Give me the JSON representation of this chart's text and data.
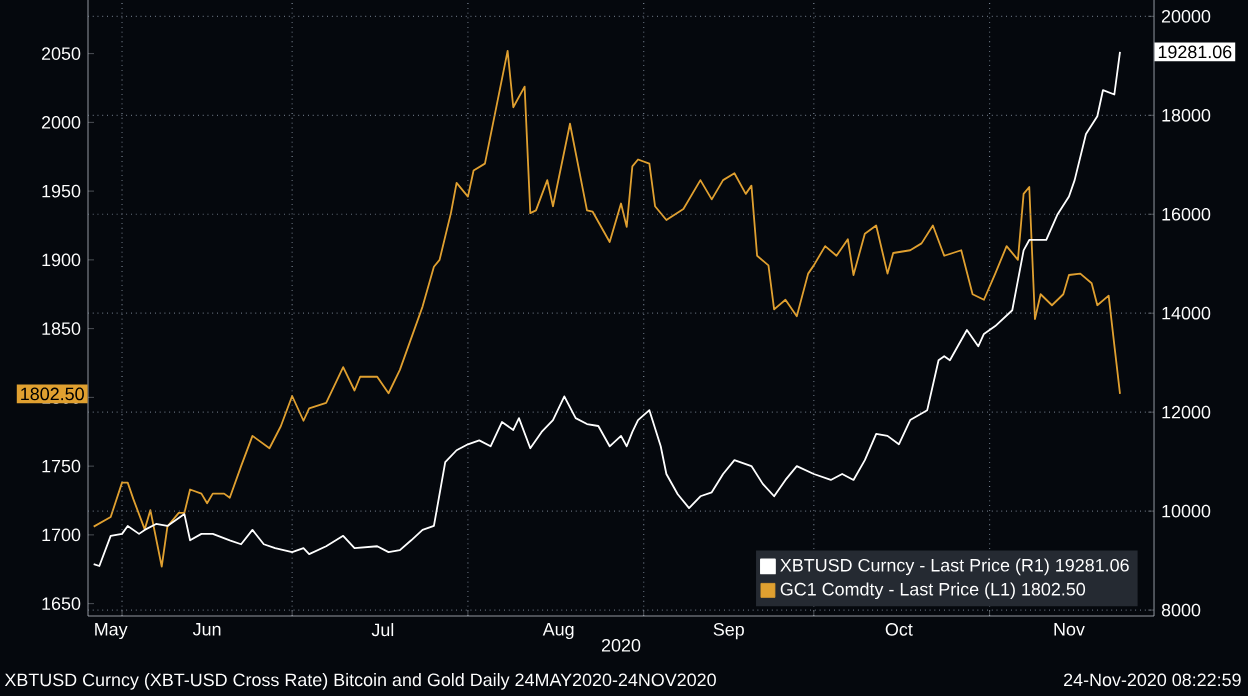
{
  "chart_data": {
    "type": "line",
    "title": "XBTUSD Curncy (XBT-USD Cross Rate) Bitcoin and Gold  Daily 24MAY2020-24NOV2020",
    "xlabel": "2020",
    "xlim": [
      "2020-05-26",
      "2020-11-30"
    ],
    "xticks": [
      {
        "value": "2020-05-30",
        "label": "May"
      },
      {
        "value": "2020-06-01",
        "label": null
      },
      {
        "value": "2020-06-16",
        "label": "Jun"
      },
      {
        "value": "2020-07-01",
        "label": null
      },
      {
        "value": "2020-07-17",
        "label": "Jul"
      },
      {
        "value": "2020-08-01",
        "label": null
      },
      {
        "value": "2020-08-17",
        "label": "Aug"
      },
      {
        "value": "2020-09-01",
        "label": null
      },
      {
        "value": "2020-09-16",
        "label": "Sep"
      },
      {
        "value": "2020-10-01",
        "label": null
      },
      {
        "value": "2020-10-16",
        "label": "Oct"
      },
      {
        "value": "2020-11-01",
        "label": null
      },
      {
        "value": "2020-11-15",
        "label": "Nov"
      }
    ],
    "ylim": [
      1641,
      2089
    ],
    "yticks": [
      1650,
      1700,
      1750,
      1800,
      1850,
      1900,
      1950,
      2000,
      2050
    ],
    "y2lim": [
      7880,
      20330
    ],
    "y2ticks": [
      8000,
      10000,
      12000,
      14000,
      16000,
      18000,
      20000
    ],
    "grid": true,
    "legend": "bottom right",
    "series": [
      {
        "name": "XBTUSD Curncy - Last Price (R1) 19281.06",
        "color": "#ffffff",
        "axis": "y2",
        "x": [
          "2020-05-27",
          "2020-05-28",
          "2020-05-30",
          "2020-06-01",
          "2020-06-02",
          "2020-06-04",
          "2020-06-05",
          "2020-06-07",
          "2020-06-09",
          "2020-06-12",
          "2020-06-13",
          "2020-06-15",
          "2020-06-17",
          "2020-06-20",
          "2020-06-22",
          "2020-06-24",
          "2020-06-26",
          "2020-06-28",
          "2020-07-01",
          "2020-07-03",
          "2020-07-04",
          "2020-07-07",
          "2020-07-10",
          "2020-07-12",
          "2020-07-16",
          "2020-07-18",
          "2020-07-20",
          "2020-07-22",
          "2020-07-24",
          "2020-07-26",
          "2020-07-28",
          "2020-07-30",
          "2020-08-01",
          "2020-08-03",
          "2020-08-05",
          "2020-08-07",
          "2020-08-09",
          "2020-08-10",
          "2020-08-12",
          "2020-08-14",
          "2020-08-16",
          "2020-08-18",
          "2020-08-20",
          "2020-08-22",
          "2020-08-24",
          "2020-08-26",
          "2020-08-28",
          "2020-08-29",
          "2020-08-30",
          "2020-08-31",
          "2020-09-02",
          "2020-09-04",
          "2020-09-05",
          "2020-09-07",
          "2020-09-09",
          "2020-09-11",
          "2020-09-13",
          "2020-09-15",
          "2020-09-17",
          "2020-09-20",
          "2020-09-22",
          "2020-09-24",
          "2020-09-26",
          "2020-09-28",
          "2020-10-01",
          "2020-10-04",
          "2020-10-06",
          "2020-10-08",
          "2020-10-10",
          "2020-10-12",
          "2020-10-14",
          "2020-10-16",
          "2020-10-18",
          "2020-10-21",
          "2020-10-23",
          "2020-10-24",
          "2020-10-25",
          "2020-10-28",
          "2020-10-30",
          "2020-10-31",
          "2020-11-02",
          "2020-11-05",
          "2020-11-07",
          "2020-11-08",
          "2020-11-11",
          "2020-11-13",
          "2020-11-15",
          "2020-11-16",
          "2020-11-18",
          "2020-11-20",
          "2020-11-21",
          "2020-11-23",
          "2020-11-24"
        ],
        "values": [
          8930,
          8890,
          9500,
          9540,
          9700,
          9540,
          9620,
          9740,
          9700,
          9940,
          9410,
          9540,
          9540,
          9410,
          9330,
          9620,
          9330,
          9250,
          9170,
          9250,
          9130,
          9290,
          9500,
          9250,
          9290,
          9170,
          9210,
          9410,
          9620,
          9700,
          10990,
          11230,
          11350,
          11430,
          11310,
          11800,
          11640,
          11880,
          11270,
          11600,
          11840,
          12320,
          11880,
          11760,
          11720,
          11310,
          11520,
          11310,
          11600,
          11840,
          12040,
          11310,
          10750,
          10340,
          10060,
          10300,
          10380,
          10750,
          11030,
          10910,
          10550,
          10300,
          10630,
          10910,
          10750,
          10630,
          10750,
          10630,
          11030,
          11560,
          11520,
          11350,
          11840,
          12040,
          13050,
          13130,
          13050,
          13660,
          13330,
          13580,
          13740,
          14060,
          15270,
          15480,
          15480,
          16000,
          16360,
          16690,
          17620,
          17980,
          18510,
          18420,
          19281.06
        ]
      },
      {
        "name": "GC1 Comdty - Last Price (L1) 1802.50",
        "color": "#e0a030",
        "x": [
          "2020-05-27",
          "2020-05-30",
          "2020-06-01",
          "2020-06-02",
          "2020-06-03",
          "2020-06-05",
          "2020-06-06",
          "2020-06-08",
          "2020-06-09",
          "2020-06-11",
          "2020-06-12",
          "2020-06-13",
          "2020-06-15",
          "2020-06-16",
          "2020-06-17",
          "2020-06-19",
          "2020-06-20",
          "2020-06-22",
          "2020-06-24",
          "2020-06-27",
          "2020-06-29",
          "2020-07-01",
          "2020-07-03",
          "2020-07-04",
          "2020-07-07",
          "2020-07-10",
          "2020-07-12",
          "2020-07-13",
          "2020-07-16",
          "2020-07-18",
          "2020-07-20",
          "2020-07-24",
          "2020-07-26",
          "2020-07-27",
          "2020-07-29",
          "2020-07-30",
          "2020-08-01",
          "2020-08-02",
          "2020-08-04",
          "2020-08-08",
          "2020-08-09",
          "2020-08-11",
          "2020-08-12",
          "2020-08-13",
          "2020-08-15",
          "2020-08-16",
          "2020-08-19",
          "2020-08-22",
          "2020-08-23",
          "2020-08-26",
          "2020-08-28",
          "2020-08-29",
          "2020-08-30",
          "2020-08-31",
          "2020-09-02",
          "2020-09-03",
          "2020-09-05",
          "2020-09-08",
          "2020-09-11",
          "2020-09-13",
          "2020-09-15",
          "2020-09-17",
          "2020-09-19",
          "2020-09-20",
          "2020-09-21",
          "2020-09-23",
          "2020-09-24",
          "2020-09-26",
          "2020-09-28",
          "2020-09-30",
          "2020-10-01",
          "2020-10-03",
          "2020-10-05",
          "2020-10-07",
          "2020-10-08",
          "2020-10-10",
          "2020-10-12",
          "2020-10-14",
          "2020-10-15",
          "2020-10-18",
          "2020-10-20",
          "2020-10-22",
          "2020-10-24",
          "2020-10-27",
          "2020-10-29",
          "2020-10-31",
          "2020-11-02",
          "2020-11-04",
          "2020-11-06",
          "2020-11-07",
          "2020-11-08",
          "2020-11-09",
          "2020-11-10",
          "2020-11-12",
          "2020-11-14",
          "2020-11-15",
          "2020-11-17",
          "2020-11-19",
          "2020-11-20",
          "2020-11-22",
          "2020-11-23",
          "2020-11-24"
        ],
        "values": [
          1706,
          1713,
          1738,
          1738,
          1726,
          1704,
          1718,
          1677,
          1706,
          1716,
          1716,
          1733,
          1730,
          1723,
          1730,
          1730,
          1727,
          1750,
          1772,
          1763,
          1779,
          1801,
          1783,
          1792,
          1796,
          1822,
          1805,
          1815,
          1815,
          1803,
          1820,
          1866,
          1895,
          1900,
          1934,
          1956,
          1946,
          1965,
          1970,
          2052,
          2011,
          2026,
          1934,
          1936,
          1958,
          1939,
          1999,
          1936,
          1935,
          1913,
          1941,
          1924,
          1968,
          1973,
          1970,
          1939,
          1929,
          1937,
          1958,
          1944,
          1958,
          1963,
          1948,
          1954,
          1903,
          1896,
          1864,
          1871,
          1859,
          1890,
          1896,
          1910,
          1903,
          1915,
          1889,
          1919,
          1925,
          1890,
          1905,
          1907,
          1912,
          1925,
          1903,
          1907,
          1875,
          1871,
          1890,
          1910,
          1900,
          1948,
          1953,
          1857,
          1875,
          1867,
          1875,
          1889,
          1890,
          1883,
          1867,
          1874,
          1838,
          1802.5
        ]
      }
    ],
    "annotations": [
      "19281.06",
      "1802.50",
      "24-Nov-2020 08:22:59"
    ]
  }
}
